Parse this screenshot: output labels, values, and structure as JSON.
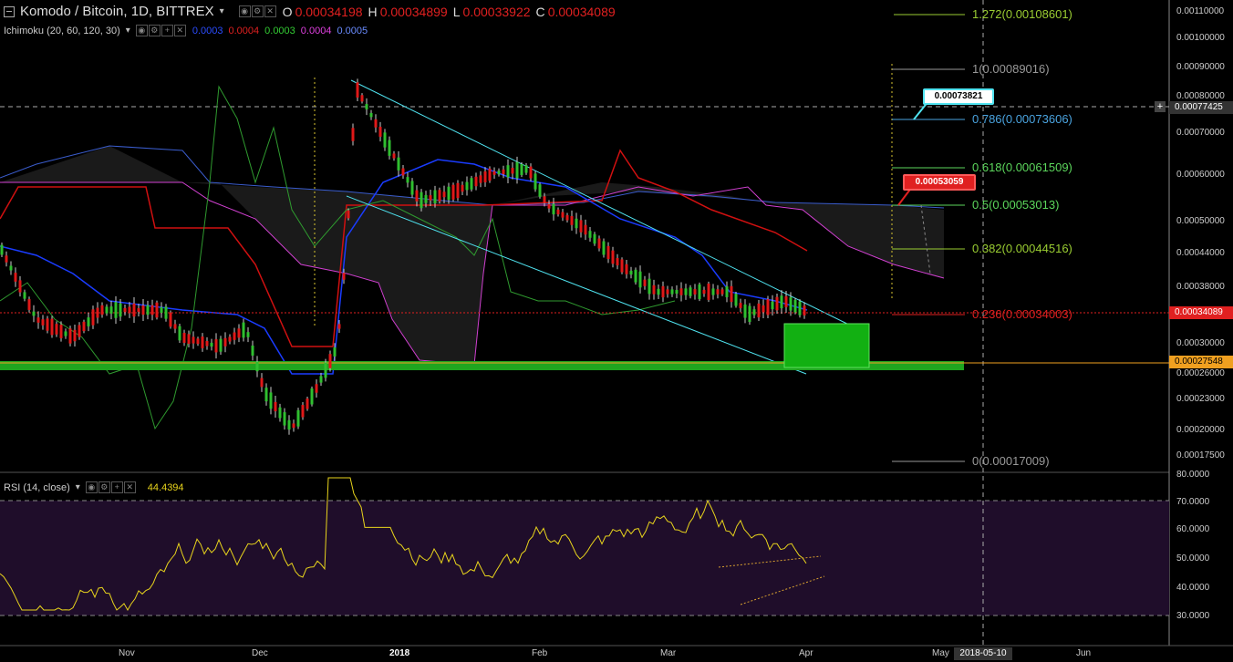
{
  "header": {
    "collapse_icon": "minus-box-icon",
    "symbol": "Komodo / Bitcoin, 1D, BITTREX",
    "ohlc": [
      {
        "k": "O",
        "v": "0.00034198"
      },
      {
        "k": "H",
        "v": "0.00034899"
      },
      {
        "k": "L",
        "v": "0.00033922"
      },
      {
        "k": "C",
        "v": "0.00034089"
      }
    ]
  },
  "ichimoku": {
    "label": "Ichimoku (20, 60, 120, 30)",
    "values": [
      {
        "v": "0.0003",
        "color": "#2b4cff"
      },
      {
        "v": "0.0004",
        "color": "#e02020"
      },
      {
        "v": "0.0003",
        "color": "#33cc33"
      },
      {
        "v": "0.0004",
        "color": "#e040e0"
      },
      {
        "v": "0.0005",
        "color": "#6a8cff"
      }
    ]
  },
  "rsi": {
    "label": "RSI (14, close)",
    "value": "44.4394",
    "value_color": "#e8d41c"
  },
  "price_axis": {
    "ticks": [
      "0.00110000",
      "0.00100000",
      "0.00090000",
      "0.00080000",
      "0.00070000",
      "0.00060000",
      "0.00050000",
      "0.00044000",
      "0.00038000",
      "0.00030000",
      "0.00026000",
      "0.00023000",
      "0.00020000",
      "0.00017500"
    ],
    "crosshair_price": "0.00077425",
    "last_price": "0.00034089",
    "support_price": "0.00027548"
  },
  "rsi_axis": {
    "ticks": [
      "80.0000",
      "70.0000",
      "60.0000",
      "50.0000",
      "40.0000",
      "30.0000"
    ]
  },
  "time_axis": {
    "labels": [
      "Nov",
      "Dec",
      "2018",
      "Feb",
      "Mar",
      "Apr",
      "May",
      "Jun"
    ],
    "crosshair_date": "2018-05-10"
  },
  "fib_levels": [
    {
      "label": "1.272(0.00108601)",
      "color": "#9acd32"
    },
    {
      "label": "1(0.00089016)",
      "color": "#999999"
    },
    {
      "label": "0.786(0.00073606)",
      "color": "#4aa3df"
    },
    {
      "label": "0.618(0.00061509)",
      "color": "#5cd65c"
    },
    {
      "label": "0.5(0.00053013)",
      "color": "#5cd65c"
    },
    {
      "label": "0.382(0.00044516)",
      "color": "#9acd32"
    },
    {
      "label": "0.236(0.00034003)",
      "color": "#e02020"
    },
    {
      "label": "0(0.00017009)",
      "color": "#999999"
    }
  ],
  "callouts": [
    {
      "text": "0.00073821",
      "color": "#4fe3f0"
    },
    {
      "text": "0.00053059",
      "color": "#e02020"
    }
  ],
  "toolbar_icons": [
    "eye-icon",
    "settings-icon",
    "add-icon",
    "close-icon"
  ]
}
